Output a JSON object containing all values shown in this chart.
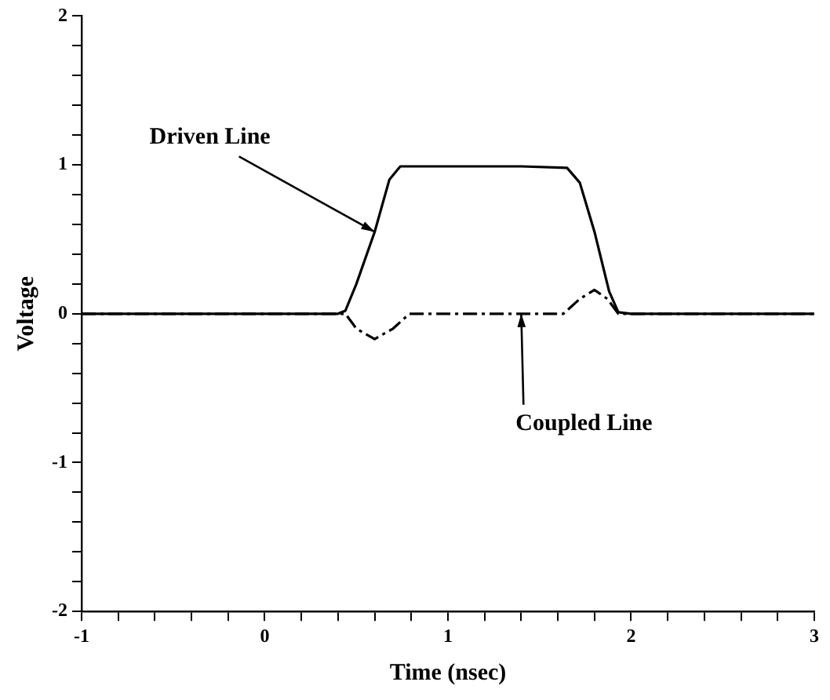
{
  "chart_data": {
    "type": "line",
    "xlabel": "Time (nsec)",
    "ylabel": "Voltage",
    "xlim": [
      -1,
      3
    ],
    "xticks": [
      -1,
      {
        "value": -0.8,
        "label": null
      },
      {
        "value": -0.6,
        "label": null
      },
      {
        "value": -0.4,
        "label": null
      },
      {
        "value": -0.2,
        "label": null
      },
      0,
      {
        "value": 0.2,
        "label": null
      },
      {
        "value": 0.4,
        "label": null
      },
      {
        "value": 0.6,
        "label": null
      },
      {
        "value": 0.8,
        "label": null
      },
      1,
      {
        "value": 1.2,
        "label": null
      },
      {
        "value": 1.4,
        "label": null
      },
      {
        "value": 1.6,
        "label": null
      },
      {
        "value": 1.8,
        "label": null
      },
      2,
      {
        "value": 2.2,
        "label": null
      },
      {
        "value": 2.4,
        "label": null
      },
      {
        "value": 2.6,
        "label": null
      },
      {
        "value": 2.8,
        "label": null
      },
      3
    ],
    "ylim": [
      -2,
      2
    ],
    "yticks": [
      -2,
      {
        "value": -1.8,
        "label": null
      },
      {
        "value": -1.6,
        "label": null
      },
      {
        "value": -1.4,
        "label": null
      },
      {
        "value": -1.2,
        "label": null
      },
      -1,
      {
        "value": -0.8,
        "label": null
      },
      {
        "value": -0.6,
        "label": null
      },
      {
        "value": -0.4,
        "label": null
      },
      {
        "value": -0.2,
        "label": null
      },
      0,
      {
        "value": 0.2,
        "label": null
      },
      {
        "value": 0.4,
        "label": null
      },
      {
        "value": 0.6,
        "label": null
      },
      {
        "value": 0.8,
        "label": null
      },
      1,
      {
        "value": 1.2,
        "label": null
      },
      {
        "value": 1.4,
        "label": null
      },
      {
        "value": 1.6,
        "label": null
      },
      {
        "value": 1.8,
        "label": null
      },
      2
    ],
    "grid": false,
    "legend": false,
    "marker": "none",
    "series": [
      {
        "color": "#000000",
        "line_style": "solid",
        "x": [
          -1,
          0.4,
          0.44,
          0.5,
          0.6,
          0.68,
          0.74,
          1.0,
          1.4,
          1.65,
          1.72,
          1.8,
          1.88,
          1.93,
          2.0,
          3
        ],
        "values": [
          0,
          0,
          0.02,
          0.2,
          0.55,
          0.9,
          0.99,
          0.99,
          0.99,
          0.98,
          0.88,
          0.55,
          0.15,
          0.01,
          0,
          0
        ]
      },
      {
        "color": "#000000",
        "line_style": "dashed",
        "x": [
          -1,
          0.4,
          0.44,
          0.5,
          0.6,
          0.7,
          0.79,
          1.0,
          1.4,
          1.63,
          1.72,
          1.8,
          1.87,
          1.93,
          2.0,
          3
        ],
        "values": [
          0,
          0,
          0,
          -0.1,
          -0.17,
          -0.1,
          0,
          0,
          0,
          0,
          0.1,
          0.16,
          0.1,
          0,
          0,
          0
        ]
      }
    ],
    "annotations": [
      {
        "text": "Driven Line",
        "x": 0.6,
        "y": 0.55
      },
      {
        "text": "Coupled Line",
        "x": 1.4,
        "y": 0
      }
    ]
  }
}
